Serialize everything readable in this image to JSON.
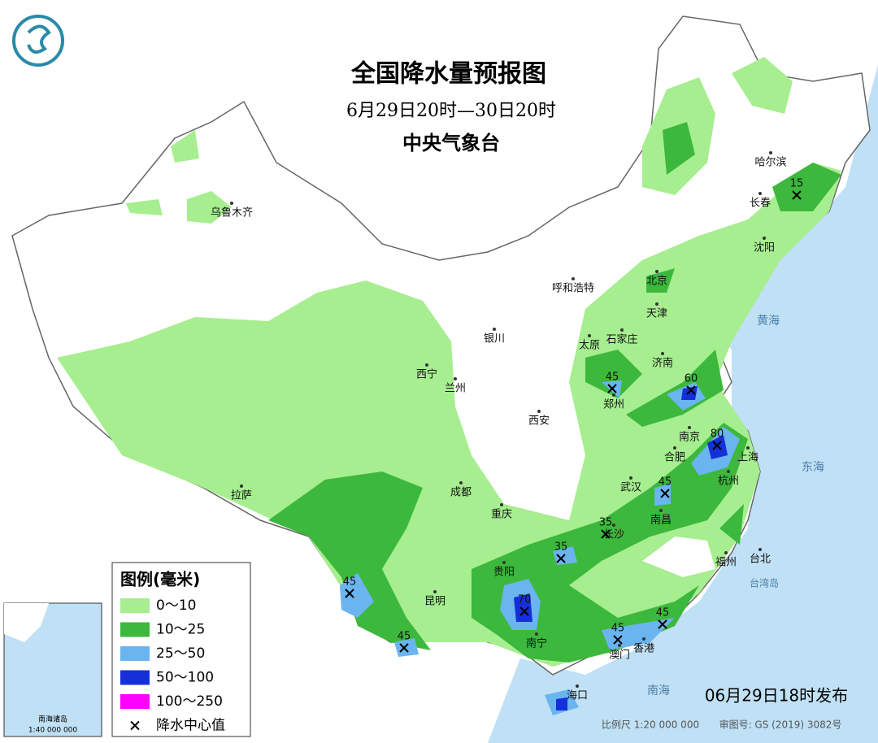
{
  "header": {
    "title": "全国降水量预报图",
    "period": "6月29日20时—30日20时",
    "issuer": "中央气象台"
  },
  "cities": [
    "乌鲁木齐",
    "哈尔滨",
    "长春",
    "沈阳",
    "北京",
    "呼和浩特",
    "天津",
    "石家庄",
    "太原",
    "银川",
    "济南",
    "西宁",
    "兰州",
    "郑州",
    "西安",
    "南京",
    "合肥",
    "上海",
    "拉萨",
    "成都",
    "武汉",
    "杭州",
    "重庆",
    "南昌",
    "长沙",
    "福州",
    "台北",
    "贵阳",
    "昆明",
    "南宁",
    "澳门",
    "香港",
    "海口"
  ],
  "places": [
    "台湾岛",
    "黄海",
    "东海",
    "南海"
  ],
  "rain_centers": [
    15,
    45,
    60,
    80,
    45,
    35,
    35,
    45,
    70,
    45,
    45,
    45
  ],
  "legend": {
    "title": "图例(毫米)",
    "items": [
      "0～10",
      "10～25",
      "25～50",
      "50～100",
      "100～250",
      "降水中心值"
    ]
  },
  "inset": {
    "title": "南海诸岛",
    "scale": "1:40 000 000"
  },
  "footer": {
    "issued": "06月29日18时发布",
    "scale": "比例尺 1:20 000 000",
    "approval": "审图号: GS (2019) 3082号"
  }
}
